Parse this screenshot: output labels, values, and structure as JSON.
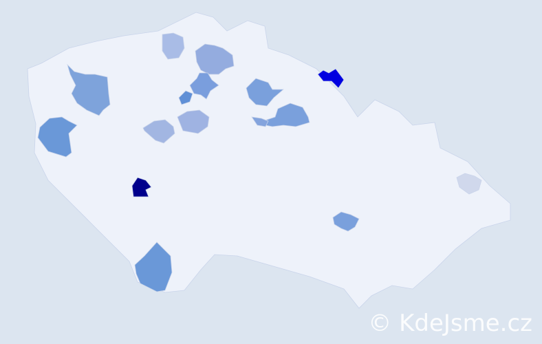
{
  "map": {
    "country_fill": "#eef2fa",
    "border_color": "#c9d4ea",
    "background": "#dce5f0",
    "regions": [
      {
        "color": "#0000e0"
      },
      {
        "color": "#00008c"
      },
      {
        "color": "#6a98d8"
      },
      {
        "color": "#6a98d8"
      },
      {
        "color": "#7aa0dc"
      },
      {
        "color": "#7aa0dc"
      },
      {
        "color": "#7aa0dc"
      },
      {
        "color": "#5f8fd6"
      },
      {
        "color": "#9fb3e2"
      },
      {
        "color": "#a2b6e2"
      },
      {
        "color": "#a9bce6"
      },
      {
        "color": "#94acdf"
      },
      {
        "color": "#7a9edd"
      },
      {
        "color": "#7ea3db"
      },
      {
        "color": "#84a4dd"
      },
      {
        "color": "#d0d8ec"
      }
    ]
  },
  "watermark": "© KdeJsme.cz"
}
